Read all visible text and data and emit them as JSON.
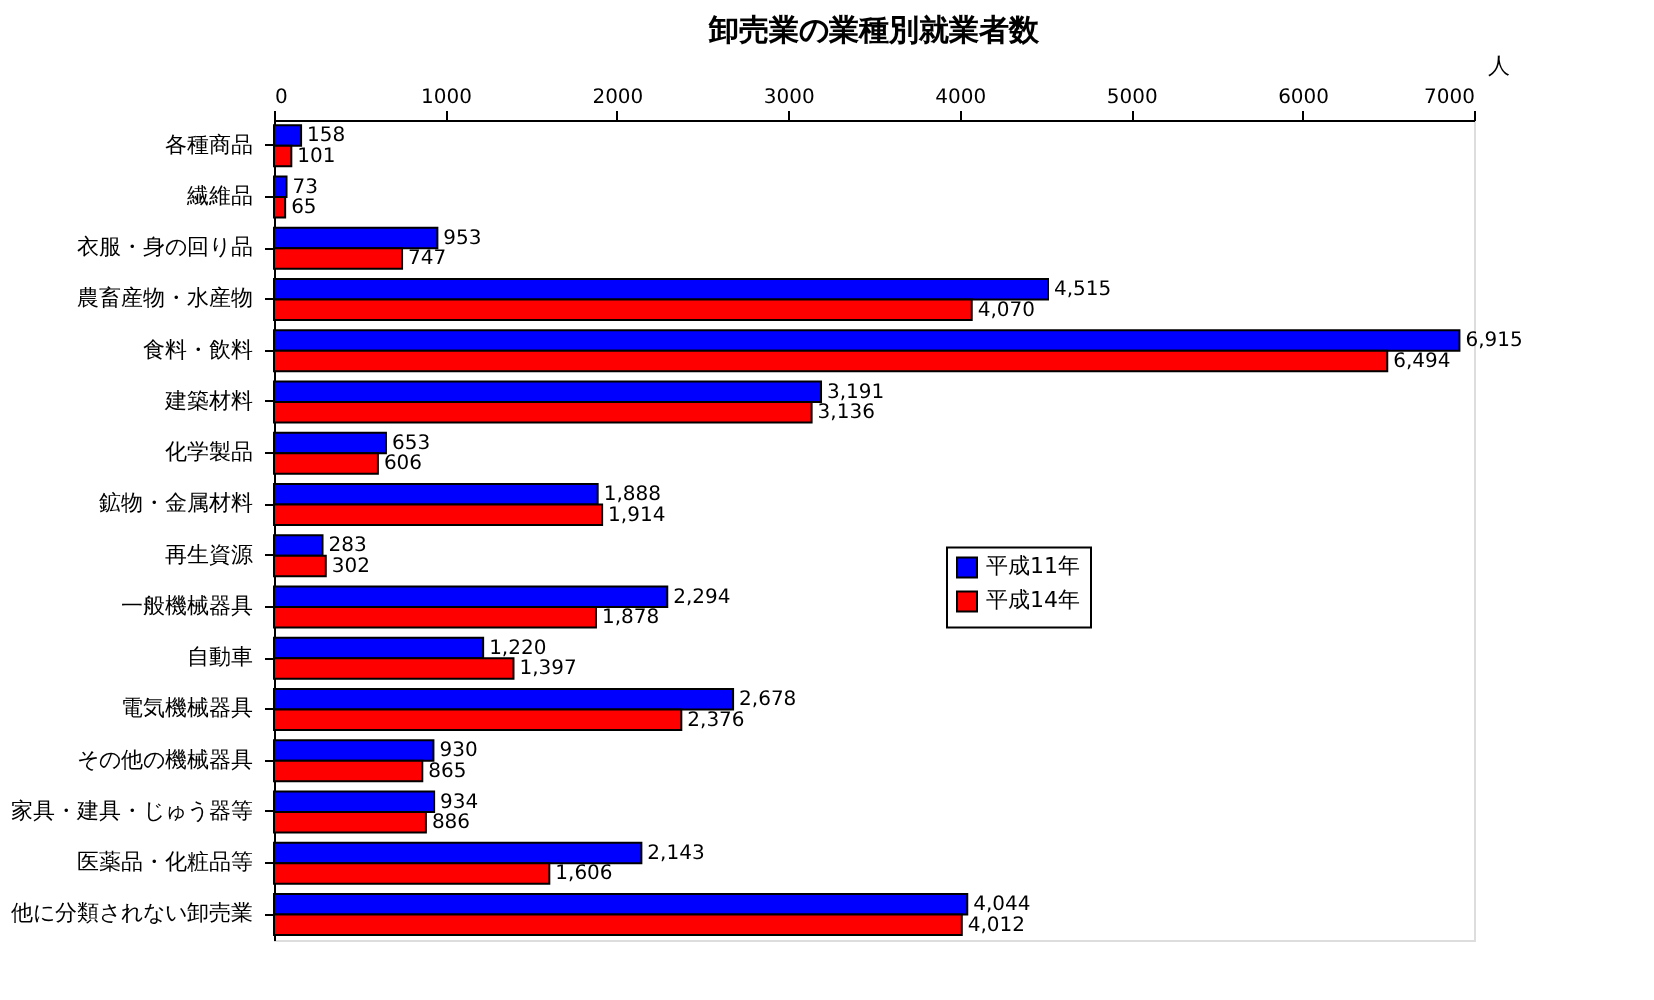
{
  "chart_data": {
    "type": "bar",
    "orientation": "horizontal",
    "title": "卸売業の業種別就業者数",
    "xlabel": "人",
    "categories": [
      "各種商品",
      "繊維品",
      "衣服・身の回り品",
      "農畜産物・水産物",
      "食料・飲料",
      "建築材料",
      "化学製品",
      "鉱物・金属材料",
      "再生資源",
      "一般機械器具",
      "自動車",
      "電気機械器具",
      "その他の機械器具",
      "家具・建具・じゅう器等",
      "医薬品・化粧品等",
      "他に分類されない卸売業"
    ],
    "series": [
      {
        "name": "平成11年",
        "color": "#0000ff",
        "values": [
          158,
          73,
          953,
          4515,
          6915,
          3191,
          653,
          1888,
          283,
          2294,
          1220,
          2678,
          930,
          934,
          2143,
          4044
        ],
        "value_labels": [
          "158",
          "73",
          "953",
          "4,515",
          "6,915",
          "3,191",
          "653",
          "1,888",
          "283",
          "2,294",
          "1,220",
          "2,678",
          "930",
          "934",
          "2,143",
          "4,044"
        ]
      },
      {
        "name": "平成14年",
        "color": "#ff0000",
        "values": [
          101,
          65,
          747,
          4070,
          6494,
          3136,
          606,
          1914,
          302,
          1878,
          1397,
          2376,
          865,
          886,
          1606,
          4012
        ],
        "value_labels": [
          "101",
          "65",
          "747",
          "4,070",
          "6,494",
          "3,136",
          "606",
          "1,914",
          "302",
          "1,878",
          "1,397",
          "2,376",
          "865",
          "886",
          "1,606",
          "4,012"
        ]
      }
    ],
    "xlim": [
      0,
      7000
    ],
    "xticks": [
      0,
      1000,
      2000,
      3000,
      4000,
      5000,
      6000,
      7000
    ],
    "grid": false,
    "legend": "right"
  }
}
